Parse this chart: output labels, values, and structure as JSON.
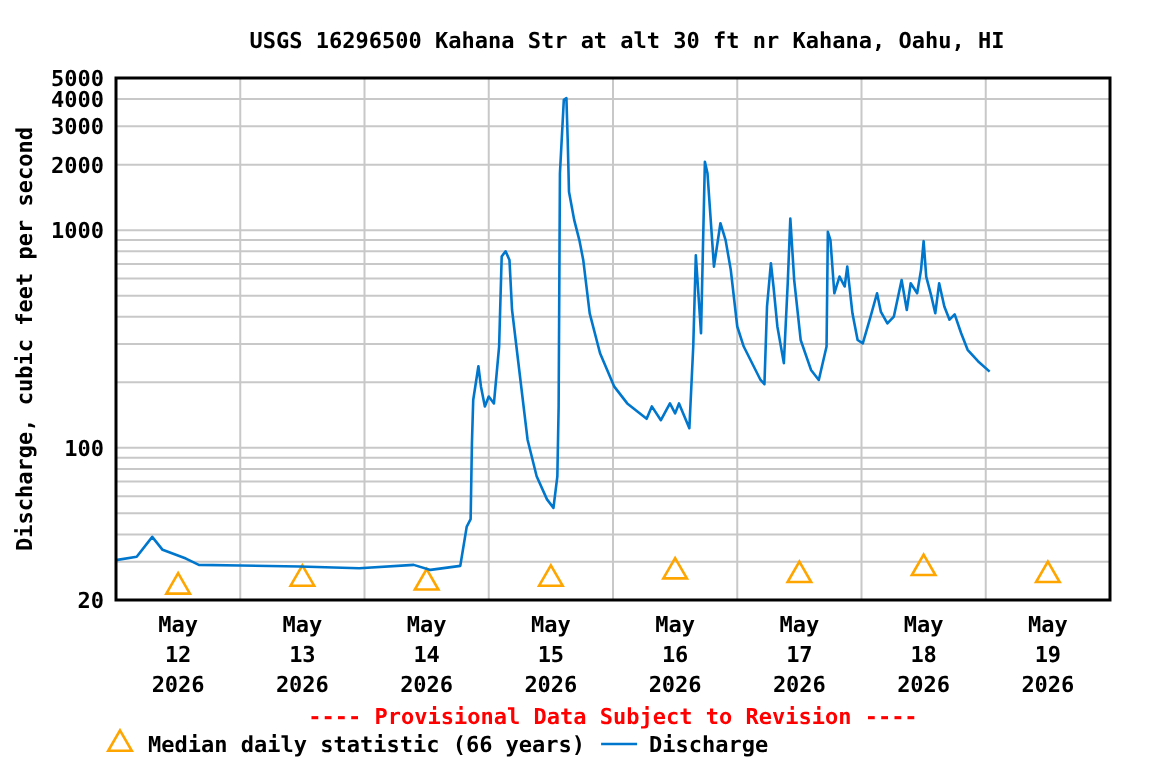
{
  "chart_data": {
    "type": "line",
    "title": "USGS 16296500 Kahana Str at alt 30 ft nr Kahana, Oahu, HI",
    "ylabel": "Discharge, cubic feet per second",
    "annotations": [
      "---- Provisional Data Subject to Revision ----"
    ],
    "log": "y",
    "grid": true,
    "legend": "bottom",
    "xlim": [
      "2026-05-12T00:00",
      "2026-05-20T00:00"
    ],
    "xticks": [
      {
        "value": "2026-05-12T12:00",
        "label": "May\n12\n2026"
      },
      {
        "value": "2026-05-13T00:00",
        "label": null
      },
      {
        "value": "2026-05-13T12:00",
        "label": "May\n13\n2026"
      },
      {
        "value": "2026-05-14T00:00",
        "label": null
      },
      {
        "value": "2026-05-14T12:00",
        "label": "May\n14\n2026"
      },
      {
        "value": "2026-05-15T00:00",
        "label": null
      },
      {
        "value": "2026-05-15T12:00",
        "label": "May\n15\n2026"
      },
      {
        "value": "2026-05-16T00:00",
        "label": null
      },
      {
        "value": "2026-05-16T12:00",
        "label": "May\n16\n2026"
      },
      {
        "value": "2026-05-17T00:00",
        "label": null
      },
      {
        "value": "2026-05-17T12:00",
        "label": "May\n17\n2026"
      },
      {
        "value": "2026-05-18T00:00",
        "label": null
      },
      {
        "value": "2026-05-18T12:00",
        "label": "May\n18\n2026"
      },
      {
        "value": "2026-05-19T00:00",
        "label": null
      },
      {
        "value": "2026-05-19T12:00",
        "label": "May\n19\n2026"
      }
    ],
    "ylim": [
      20,
      5000
    ],
    "yticks": [
      20,
      {
        "value": 30,
        "label": null
      },
      {
        "value": 40,
        "label": null
      },
      {
        "value": 50,
        "label": null
      },
      {
        "value": 60,
        "label": null
      },
      {
        "value": 70,
        "label": null
      },
      {
        "value": 80,
        "label": null
      },
      {
        "value": 90,
        "label": null
      },
      100,
      {
        "value": 200,
        "label": null
      },
      {
        "value": 300,
        "label": null
      },
      {
        "value": 400,
        "label": null
      },
      {
        "value": 500,
        "label": null
      },
      {
        "value": 600,
        "label": null
      },
      {
        "value": 700,
        "label": null
      },
      {
        "value": 800,
        "label": null
      },
      {
        "value": 900,
        "label": null
      },
      1000,
      2000,
      3000,
      4000,
      5000
    ],
    "series": [
      {
        "name": "Median daily statistic (66 years)",
        "type": "scatter",
        "marker": "triangle",
        "color": "#ffa500",
        "x": [
          "2026-05-12T12:00",
          "2026-05-13T12:00",
          "2026-05-14T12:00",
          "2026-05-15T12:00",
          "2026-05-16T12:00",
          "2026-05-17T12:00",
          "2026-05-18T12:00",
          "2026-05-19T12:00"
        ],
        "values": [
          23,
          25,
          24,
          25,
          27,
          26,
          28,
          26
        ]
      },
      {
        "name": "Discharge",
        "type": "line",
        "color": "#0077cc",
        "x": [
          "2026-05-12T00:00",
          "2026-05-12T04:00",
          "2026-05-12T07:00",
          "2026-05-12T09:00",
          "2026-05-12T13:30",
          "2026-05-12T16:00",
          "2026-05-13T00:00",
          "2026-05-13T11:30",
          "2026-05-13T23:00",
          "2026-05-14T09:30",
          "2026-05-14T12:45",
          "2026-05-14T18:30",
          "2026-05-14T19:45",
          "2026-05-14T20:30",
          "2026-05-14T20:45",
          "2026-05-14T21:00",
          "2026-05-14T22:00",
          "2026-05-14T22:30",
          "2026-05-14T23:15",
          "2026-05-15T00:00",
          "2026-05-15T01:00",
          "2026-05-15T02:00",
          "2026-05-15T02:30",
          "2026-05-15T03:15",
          "2026-05-15T04:00",
          "2026-05-15T04:30",
          "2026-05-15T05:30",
          "2026-05-15T07:30",
          "2026-05-15T09:15",
          "2026-05-15T11:15",
          "2026-05-15T12:30",
          "2026-05-15T13:15",
          "2026-05-15T13:30",
          "2026-05-15T13:45",
          "2026-05-15T14:30",
          "2026-05-15T15:00",
          "2026-05-15T15:15",
          "2026-05-15T15:30",
          "2026-05-15T16:30",
          "2026-05-15T17:30",
          "2026-05-15T18:15",
          "2026-05-15T19:30",
          "2026-05-15T21:30",
          "2026-05-16T00:15",
          "2026-05-16T02:45",
          "2026-05-16T06:30",
          "2026-05-16T07:30",
          "2026-05-16T09:15",
          "2026-05-16T11:00",
          "2026-05-16T12:00",
          "2026-05-16T12:45",
          "2026-05-16T14:45",
          "2026-05-16T15:30",
          "2026-05-16T16:00",
          "2026-05-16T17:00",
          "2026-05-16T17:45",
          "2026-05-16T18:15",
          "2026-05-16T19:30",
          "2026-05-16T20:45",
          "2026-05-16T21:45",
          "2026-05-16T22:45",
          "2026-05-17T00:00",
          "2026-05-17T01:15",
          "2026-05-17T04:30",
          "2026-05-17T05:15",
          "2026-05-17T05:45",
          "2026-05-17T06:30",
          "2026-05-17T07:00",
          "2026-05-17T07:45",
          "2026-05-17T09:00",
          "2026-05-17T09:45",
          "2026-05-17T10:15",
          "2026-05-17T11:00",
          "2026-05-17T12:15",
          "2026-05-17T14:15",
          "2026-05-17T15:45",
          "2026-05-17T17:15",
          "2026-05-17T17:30",
          "2026-05-17T18:00",
          "2026-05-17T18:45",
          "2026-05-17T19:45",
          "2026-05-17T20:45",
          "2026-05-17T21:15",
          "2026-05-17T22:15",
          "2026-05-17T23:15",
          "2026-05-18T00:15",
          "2026-05-18T01:45",
          "2026-05-18T03:00",
          "2026-05-18T03:45",
          "2026-05-18T05:00",
          "2026-05-18T06:15",
          "2026-05-18T07:45",
          "2026-05-18T08:45",
          "2026-05-18T09:30",
          "2026-05-18T10:45",
          "2026-05-18T11:30",
          "2026-05-18T12:00",
          "2026-05-18T12:30",
          "2026-05-18T13:30",
          "2026-05-18T14:15",
          "2026-05-18T15:00",
          "2026-05-18T16:00",
          "2026-05-18T17:00",
          "2026-05-18T18:00",
          "2026-05-18T19:15",
          "2026-05-18T20:30",
          "2026-05-18T22:30",
          "2026-05-19T00:45"
        ],
        "values": [
          30.5,
          31.6,
          39,
          34,
          31,
          29,
          28.8,
          28.5,
          28,
          29,
          27.5,
          28.7,
          43.5,
          47,
          105,
          166,
          237,
          191,
          155,
          172,
          160,
          292,
          757,
          800,
          730,
          430,
          272,
          109,
          74,
          58,
          53,
          74,
          155,
          1825,
          3970,
          4040,
          2600,
          1500,
          1115,
          900,
          730,
          415,
          272,
          191,
          160,
          136,
          155,
          134,
          160,
          144,
          160,
          123,
          292,
          767,
          336,
          2060,
          1825,
          680,
          1076,
          900,
          657,
          361,
          292,
          205,
          196,
          446,
          705,
          551,
          361,
          245,
          570,
          1130,
          590,
          313,
          228,
          205,
          292,
          982,
          900,
          513,
          612,
          551,
          680,
          415,
          313,
          302,
          401,
          513,
          421,
          373,
          401,
          590,
          430,
          570,
          513,
          657,
          890,
          612,
          496,
          415,
          570,
          446,
          388,
          410,
          336,
          282,
          250,
          224
        ]
      }
    ]
  }
}
